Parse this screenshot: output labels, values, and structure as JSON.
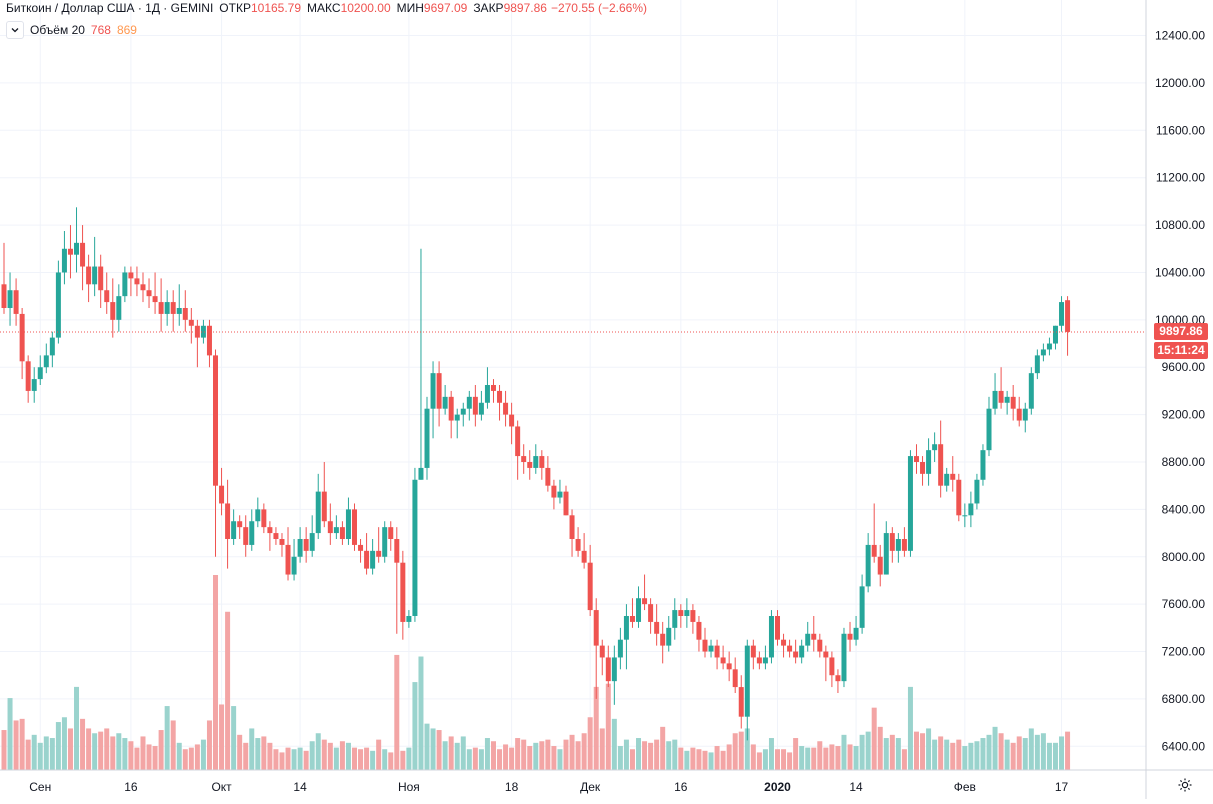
{
  "header": {
    "symbol": "Биткоин / Доллар США · 1Д · GEMINI",
    "open_label": "ОТКР",
    "open_value": "10165.79",
    "high_label": "МАКС",
    "high_value": "10200.00",
    "low_label": "МИН",
    "low_value": "9697.09",
    "close_label": "ЗАКР",
    "close_value": "9897.86",
    "change": "−270.55 (−2.66%)"
  },
  "volume_legend": {
    "name": "Объём 20",
    "value_a": "768",
    "value_b": "869"
  },
  "price_tag": {
    "value": "9897.86",
    "countdown": "15:11:24"
  },
  "colors": {
    "up": "#26a69a",
    "down": "#ef5350",
    "up_vol": "#9ad3cd",
    "down_vol": "#f3a5a5",
    "grid": "#f0f3fa",
    "axis_text": "#131722"
  },
  "icons": {
    "collapse": "chevron-down-icon",
    "settings": "gear-icon"
  },
  "chart_data": {
    "type": "candlestick",
    "title": "Биткоин / Доллар США · 1Д · GEMINI",
    "y_ticks": [
      "12400.00",
      "12000.00",
      "11600.00",
      "11200.00",
      "10800.00",
      "10400.00",
      "10000.00",
      "9600.00",
      "9200.00",
      "8800.00",
      "8400.00",
      "8000.00",
      "7600.00",
      "7200.00",
      "6800.00",
      "6400.00"
    ],
    "ylim": [
      6200,
      12700
    ],
    "x_ticks": [
      {
        "label": "Сен",
        "date": "2019-09-01",
        "bold": false
      },
      {
        "label": "16",
        "date": "2019-09-16",
        "bold": false
      },
      {
        "label": "Окт",
        "date": "2019-10-01",
        "bold": false
      },
      {
        "label": "14",
        "date": "2019-10-14",
        "bold": false
      },
      {
        "label": "Ноя",
        "date": "2019-11-01",
        "bold": false
      },
      {
        "label": "18",
        "date": "2019-11-18",
        "bold": false
      },
      {
        "label": "Дек",
        "date": "2019-12-01",
        "bold": false
      },
      {
        "label": "16",
        "date": "2019-12-16",
        "bold": false
      },
      {
        "label": "2020",
        "date": "2020-01-01",
        "bold": true
      },
      {
        "label": "14",
        "date": "2020-01-14",
        "bold": false
      },
      {
        "label": "Фев",
        "date": "2020-02-01",
        "bold": false
      },
      {
        "label": "17",
        "date": "2020-02-17",
        "bold": false
      }
    ],
    "first_date": "2019-08-26",
    "last_close_line": 9897.86,
    "candles": [
      [
        10300,
        10100,
        10650,
        10050,
        250
      ],
      [
        10100,
        10250,
        10400,
        9950,
        450
      ],
      [
        10250,
        10050,
        10350,
        9950,
        310
      ],
      [
        10050,
        9650,
        10100,
        9500,
        320
      ],
      [
        9650,
        9400,
        9700,
        9300,
        190
      ],
      [
        9400,
        9500,
        9600,
        9300,
        220
      ],
      [
        9500,
        9600,
        9700,
        9450,
        170
      ],
      [
        9600,
        9700,
        9800,
        9550,
        210
      ],
      [
        9700,
        9850,
        9900,
        9600,
        200
      ],
      [
        9850,
        10400,
        10500,
        9800,
        300
      ],
      [
        10400,
        10600,
        10750,
        10300,
        330
      ],
      [
        10600,
        10550,
        10800,
        10350,
        260
      ],
      [
        10550,
        10650,
        10950,
        10400,
        520
      ],
      [
        10650,
        10450,
        10800,
        10250,
        320
      ],
      [
        10450,
        10300,
        10550,
        10150,
        260
      ],
      [
        10300,
        10450,
        10700,
        10200,
        230
      ],
      [
        10450,
        10250,
        10550,
        10100,
        240
      ],
      [
        10250,
        10150,
        10400,
        10050,
        260
      ],
      [
        10150,
        10000,
        10350,
        9850,
        210
      ],
      [
        10000,
        10200,
        10300,
        9900,
        230
      ],
      [
        10200,
        10400,
        10450,
        10150,
        200
      ],
      [
        10400,
        10350,
        10450,
        10200,
        180
      ],
      [
        10350,
        10300,
        10450,
        10200,
        140
      ],
      [
        10300,
        10250,
        10400,
        10150,
        210
      ],
      [
        10250,
        10200,
        10350,
        10100,
        160
      ],
      [
        10200,
        10150,
        10400,
        10050,
        150
      ],
      [
        10150,
        10050,
        10350,
        9900,
        250
      ],
      [
        10050,
        10150,
        10250,
        9950,
        400
      ],
      [
        10150,
        10050,
        10250,
        9900,
        310
      ],
      [
        10050,
        10100,
        10300,
        9950,
        170
      ],
      [
        10100,
        10000,
        10250,
        9900,
        130
      ],
      [
        10000,
        9950,
        10100,
        9800,
        140
      ],
      [
        9950,
        9850,
        10000,
        9600,
        160
      ],
      [
        9850,
        9950,
        10000,
        9800,
        190
      ],
      [
        9950,
        9700,
        10000,
        9600,
        310
      ],
      [
        9700,
        8600,
        9750,
        8000,
        1220
      ],
      [
        8600,
        8450,
        8750,
        8350,
        410
      ],
      [
        8450,
        8150,
        8650,
        7900,
        990
      ],
      [
        8150,
        8300,
        8400,
        8100,
        400
      ],
      [
        8300,
        8250,
        8350,
        8150,
        220
      ],
      [
        8250,
        8100,
        8350,
        8000,
        170
      ],
      [
        8100,
        8300,
        8400,
        8050,
        260
      ],
      [
        8300,
        8400,
        8500,
        8250,
        200
      ],
      [
        8400,
        8250,
        8450,
        8200,
        210
      ],
      [
        8250,
        8200,
        8300,
        8050,
        170
      ],
      [
        8200,
        8150,
        8250,
        8100,
        130
      ],
      [
        8150,
        8100,
        8200,
        8000,
        110
      ],
      [
        8100,
        7850,
        8250,
        7800,
        140
      ],
      [
        7850,
        8000,
        8150,
        7800,
        130
      ],
      [
        8000,
        8150,
        8250,
        7950,
        140
      ],
      [
        8150,
        8050,
        8250,
        7950,
        120
      ],
      [
        8050,
        8200,
        8350,
        8000,
        180
      ],
      [
        8200,
        8550,
        8700,
        8150,
        230
      ],
      [
        8550,
        8300,
        8800,
        8250,
        190
      ],
      [
        8300,
        8200,
        8450,
        8100,
        170
      ],
      [
        8200,
        8250,
        8350,
        8150,
        140
      ],
      [
        8250,
        8150,
        8300,
        8100,
        180
      ],
      [
        8150,
        8400,
        8500,
        8100,
        170
      ],
      [
        8400,
        8100,
        8450,
        8050,
        140
      ],
      [
        8100,
        8050,
        8150,
        7950,
        130
      ],
      [
        8050,
        7900,
        8200,
        7850,
        140
      ],
      [
        7900,
        8050,
        8150,
        7850,
        120
      ],
      [
        8050,
        8000,
        8250,
        7950,
        190
      ],
      [
        8000,
        8250,
        8300,
        7950,
        130
      ],
      [
        8250,
        8150,
        8300,
        8050,
        110
      ],
      [
        8150,
        7950,
        8250,
        7350,
        720
      ],
      [
        7950,
        7450,
        8050,
        7300,
        120
      ],
      [
        7450,
        7500,
        7550,
        7400,
        140
      ],
      [
        7500,
        8650,
        8750,
        7450,
        550
      ],
      [
        8650,
        8750,
        10600,
        8650,
        710
      ],
      [
        8750,
        9250,
        9350,
        8650,
        290
      ],
      [
        9250,
        9550,
        9650,
        9000,
        260
      ],
      [
        9550,
        9250,
        9650,
        9100,
        250
      ],
      [
        9250,
        9350,
        9450,
        9200,
        180
      ],
      [
        9350,
        9150,
        9400,
        9000,
        210
      ],
      [
        9150,
        9200,
        9250,
        9000,
        170
      ],
      [
        9200,
        9250,
        9300,
        9100,
        210
      ],
      [
        9250,
        9350,
        9400,
        9150,
        130
      ],
      [
        9350,
        9200,
        9450,
        9100,
        140
      ],
      [
        9200,
        9300,
        9400,
        9150,
        130
      ],
      [
        9300,
        9450,
        9600,
        9250,
        200
      ],
      [
        9450,
        9400,
        9500,
        9300,
        180
      ],
      [
        9400,
        9300,
        9450,
        9150,
        130
      ],
      [
        9300,
        9200,
        9400,
        9100,
        160
      ],
      [
        9200,
        9100,
        9300,
        8950,
        140
      ],
      [
        9100,
        8850,
        9150,
        8650,
        200
      ],
      [
        8850,
        8800,
        8950,
        8700,
        190
      ],
      [
        8800,
        8750,
        8900,
        8650,
        150
      ],
      [
        8750,
        8850,
        8950,
        8700,
        170
      ],
      [
        8850,
        8750,
        8900,
        8650,
        180
      ],
      [
        8750,
        8600,
        8850,
        8550,
        190
      ],
      [
        8600,
        8500,
        8650,
        8400,
        150
      ],
      [
        8500,
        8550,
        8650,
        8450,
        130
      ],
      [
        8550,
        8350,
        8600,
        8350,
        190
      ],
      [
        8350,
        8150,
        8400,
        8000,
        220
      ],
      [
        8150,
        8050,
        8250,
        8000,
        180
      ],
      [
        8050,
        7950,
        8200,
        7900,
        230
      ],
      [
        7950,
        7550,
        8100,
        7500,
        330
      ],
      [
        7550,
        7250,
        7650,
        6800,
        520
      ],
      [
        7250,
        7150,
        7300,
        7000,
        260
      ],
      [
        7150,
        6950,
        7250,
        6900,
        540
      ],
      [
        6950,
        7150,
        7250,
        6750,
        320
      ],
      [
        7150,
        7300,
        7400,
        7050,
        150
      ],
      [
        7300,
        7500,
        7600,
        7050,
        190
      ],
      [
        7500,
        7450,
        7650,
        7400,
        130
      ],
      [
        7450,
        7650,
        7750,
        7400,
        200
      ],
      [
        7650,
        7600,
        7850,
        7550,
        180
      ],
      [
        7600,
        7450,
        7650,
        7350,
        170
      ],
      [
        7450,
        7350,
        7600,
        7250,
        190
      ],
      [
        7350,
        7250,
        7450,
        7100,
        270
      ],
      [
        7250,
        7400,
        7500,
        7200,
        180
      ],
      [
        7400,
        7550,
        7650,
        7300,
        190
      ],
      [
        7550,
        7500,
        7600,
        7400,
        140
      ],
      [
        7500,
        7550,
        7650,
        7400,
        120
      ],
      [
        7550,
        7450,
        7600,
        7350,
        140
      ],
      [
        7450,
        7300,
        7500,
        7200,
        130
      ],
      [
        7300,
        7200,
        7400,
        7150,
        120
      ],
      [
        7200,
        7250,
        7300,
        7150,
        110
      ],
      [
        7250,
        7150,
        7300,
        7050,
        150
      ],
      [
        7150,
        7100,
        7250,
        7050,
        120
      ],
      [
        7100,
        7050,
        7200,
        6950,
        160
      ],
      [
        7050,
        6900,
        7150,
        6850,
        230
      ],
      [
        6900,
        6650,
        7000,
        6550,
        240
      ],
      [
        6650,
        7250,
        7300,
        6450,
        260
      ],
      [
        7250,
        7150,
        7300,
        7050,
        160
      ],
      [
        7150,
        7100,
        7200,
        7050,
        110
      ],
      [
        7100,
        7150,
        7250,
        7050,
        130
      ],
      [
        7150,
        7500,
        7550,
        7100,
        200
      ],
      [
        7500,
        7300,
        7550,
        7250,
        130
      ],
      [
        7300,
        7250,
        7350,
        7150,
        130
      ],
      [
        7250,
        7200,
        7300,
        7150,
        110
      ],
      [
        7200,
        7150,
        7300,
        7100,
        200
      ],
      [
        7150,
        7250,
        7300,
        7100,
        150
      ],
      [
        7250,
        7350,
        7450,
        7200,
        140
      ],
      [
        7350,
        7300,
        7500,
        7200,
        140
      ],
      [
        7300,
        7200,
        7350,
        7150,
        180
      ],
      [
        7200,
        7150,
        7250,
        6950,
        140
      ],
      [
        7150,
        7000,
        7200,
        6900,
        160
      ],
      [
        7000,
        6950,
        7050,
        6850,
        150
      ],
      [
        6950,
        7350,
        7400,
        6900,
        220
      ],
      [
        7350,
        7300,
        7450,
        7200,
        160
      ],
      [
        7300,
        7400,
        7500,
        7250,
        150
      ],
      [
        7400,
        7750,
        7850,
        7350,
        220
      ],
      [
        7750,
        8100,
        8200,
        7700,
        240
      ],
      [
        8100,
        8000,
        8450,
        7950,
        390
      ],
      [
        8000,
        7850,
        8100,
        7750,
        270
      ],
      [
        7850,
        8200,
        8300,
        7850,
        200
      ],
      [
        8200,
        8050,
        8250,
        7950,
        220
      ],
      [
        8050,
        8150,
        8200,
        7950,
        200
      ],
      [
        8150,
        8050,
        8250,
        8000,
        130
      ],
      [
        8050,
        8850,
        8900,
        8000,
        520
      ],
      [
        8850,
        8800,
        8950,
        8700,
        240
      ],
      [
        8800,
        8700,
        8850,
        8600,
        230
      ],
      [
        8700,
        8900,
        9000,
        8600,
        260
      ],
      [
        8900,
        8950,
        9050,
        8800,
        190
      ],
      [
        8950,
        8600,
        9150,
        8500,
        210
      ],
      [
        8600,
        8700,
        8750,
        8550,
        190
      ],
      [
        8700,
        8650,
        8850,
        8550,
        170
      ],
      [
        8650,
        8350,
        8700,
        8300,
        190
      ],
      [
        8350,
        8350,
        8450,
        8250,
        150
      ],
      [
        8350,
        8450,
        8550,
        8250,
        170
      ],
      [
        8450,
        8650,
        8700,
        8400,
        180
      ],
      [
        8650,
        8900,
        8950,
        8600,
        200
      ],
      [
        8900,
        9250,
        9350,
        8850,
        220
      ],
      [
        9250,
        9400,
        9550,
        9200,
        270
      ],
      [
        9400,
        9300,
        9600,
        9250,
        230
      ],
      [
        9300,
        9350,
        9400,
        9200,
        190
      ],
      [
        9350,
        9250,
        9450,
        9150,
        170
      ],
      [
        9250,
        9150,
        9350,
        9100,
        210
      ],
      [
        9150,
        9250,
        9300,
        9050,
        200
      ],
      [
        9250,
        9550,
        9600,
        9200,
        260
      ],
      [
        9550,
        9700,
        9750,
        9500,
        220
      ],
      [
        9700,
        9750,
        9800,
        9650,
        230
      ],
      [
        9750,
        9800,
        9850,
        9700,
        170
      ],
      [
        9800,
        9950,
        9950,
        9750,
        170
      ],
      [
        9950,
        10150,
        10200,
        9900,
        210
      ],
      [
        10165.79,
        9897.86,
        10200,
        9697.09,
        240
      ]
    ]
  }
}
